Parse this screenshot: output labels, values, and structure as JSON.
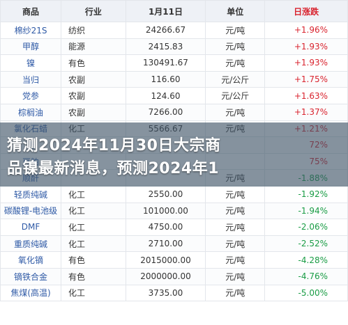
{
  "table": {
    "headers": [
      "商品",
      "行业",
      "1月11日",
      "单位",
      "日涨跌"
    ],
    "rows": [
      {
        "name": "棉纱21S",
        "industry": "纺织",
        "price": "24266.67",
        "unit": "元/吨",
        "change": "+1.96%"
      },
      {
        "name": "甲醇",
        "industry": "能源",
        "price": "2415.83",
        "unit": "元/吨",
        "change": "+1.93%"
      },
      {
        "name": "镍",
        "industry": "有色",
        "price": "130491.67",
        "unit": "元/吨",
        "change": "+1.93%"
      },
      {
        "name": "当归",
        "industry": "农副",
        "price": "116.60",
        "unit": "元/公斤",
        "change": "+1.75%"
      },
      {
        "name": "党参",
        "industry": "农副",
        "price": "124.60",
        "unit": "元/公斤",
        "change": "+1.63%"
      },
      {
        "name": "棕榈油",
        "industry": "农副",
        "price": "7266.00",
        "unit": "元/吨",
        "change": "+1.37%"
      },
      {
        "name": "氯化石蜡",
        "industry": "化工",
        "price": "5566.67",
        "unit": "元/吨",
        "change": "+1.21%"
      },
      {
        "name": "丙",
        "industry": "",
        "price": "",
        "unit": "",
        "change": "72%"
      },
      {
        "name": "豆粕",
        "industry": "",
        "price": "",
        "unit": "",
        "change": "75%"
      },
      {
        "name": "顺酐",
        "industry": "",
        "price": "",
        "unit": "元/吨",
        "change": "-1.88%"
      },
      {
        "name": "轻质纯碱",
        "industry": "化工",
        "price": "2550.00",
        "unit": "元/吨",
        "change": "-1.92%"
      },
      {
        "name": "碳酸锂-电池级",
        "industry": "化工",
        "price": "101000.00",
        "unit": "元/吨",
        "change": "-1.94%"
      },
      {
        "name": "DMF",
        "industry": "化工",
        "price": "4750.00",
        "unit": "元/吨",
        "change": "-2.06%"
      },
      {
        "name": "重质纯碱",
        "industry": "化工",
        "price": "2710.00",
        "unit": "元/吨",
        "change": "-2.52%"
      },
      {
        "name": "氧化镝",
        "industry": "有色",
        "price": "2015000.00",
        "unit": "元/吨",
        "change": "-4.28%"
      },
      {
        "name": "镝铁合金",
        "industry": "有色",
        "price": "2000000.00",
        "unit": "元/吨",
        "change": "-4.76%"
      },
      {
        "name": "焦煤(高温)",
        "industry": "化工",
        "price": "3735.00",
        "unit": "元/吨",
        "change": "-5.00%"
      }
    ]
  },
  "headline": {
    "line1": "猜测2024年11月30日大宗商",
    "line2": "品镍最新消息，预测2024年1"
  }
}
